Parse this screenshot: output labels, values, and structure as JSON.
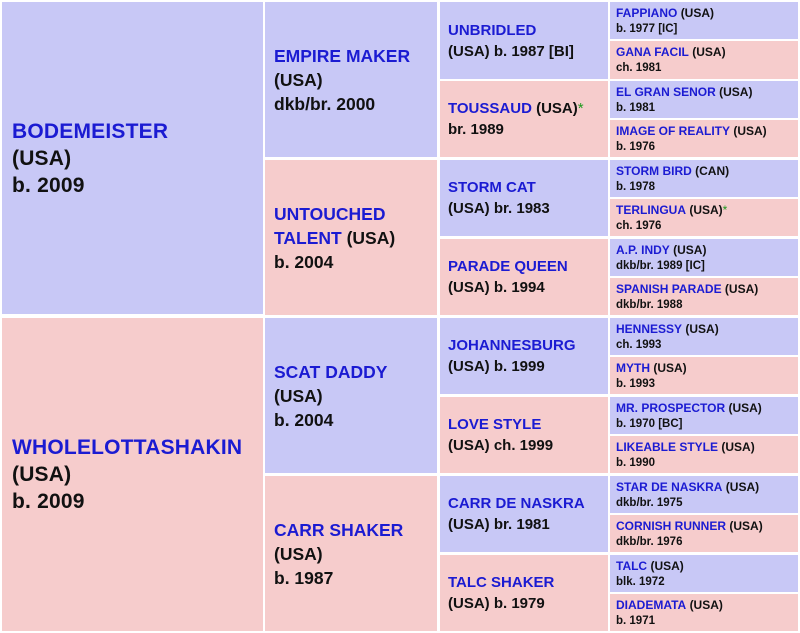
{
  "generation1": [
    {
      "name": "BODEMEISTER",
      "country": "(USA)",
      "detail": "b. 2009",
      "sex": "m"
    },
    {
      "name": "WHOLELOTTASHAKIN",
      "country": "(USA)",
      "detail": "b. 2009",
      "sex": "f"
    }
  ],
  "generation2": [
    {
      "name": "EMPIRE MAKER",
      "country": "(USA)",
      "detail": "dkb/br. 2000",
      "sex": "m"
    },
    {
      "name": "UNTOUCHED",
      "name2": "TALENT",
      "country": "(USA)",
      "detail": "b. 2004",
      "sex": "f"
    },
    {
      "name": "SCAT DADDY",
      "country": "(USA)",
      "detail": "b. 2004",
      "sex": "m"
    },
    {
      "name": "CARR SHAKER",
      "country": "(USA)",
      "detail": "b. 1987",
      "sex": "f"
    }
  ],
  "generation3": [
    {
      "name": "UNBRIDLED",
      "country": "(USA)",
      "detail": "b. 1987 [BI]",
      "sex": "m"
    },
    {
      "name": "TOUSSAUD",
      "country": "(USA)",
      "star": "*",
      "detail": "br. 1989",
      "sex": "f"
    },
    {
      "name": "STORM CAT",
      "country": "(USA)",
      "detail": "br. 1983",
      "sex": "m"
    },
    {
      "name": "PARADE QUEEN",
      "country": "(USA)",
      "detail": "b. 1994",
      "sex": "f"
    },
    {
      "name": "JOHANNESBURG",
      "country": "(USA)",
      "detail": "b. 1999",
      "sex": "m"
    },
    {
      "name": "LOVE STYLE",
      "country": "(USA)",
      "detail": "ch. 1999",
      "sex": "f"
    },
    {
      "name": "CARR DE NASKRA",
      "country": "(USA)",
      "detail": "br. 1981",
      "sex": "m"
    },
    {
      "name": "TALC SHAKER",
      "country": "(USA)",
      "detail": "b. 1979",
      "sex": "f"
    }
  ],
  "generation4": [
    {
      "name": "FAPPIANO",
      "country": "(USA)",
      "detail": "b. 1977 [IC]",
      "sex": "m"
    },
    {
      "name": "GANA FACIL",
      "country": "(USA)",
      "detail": "ch. 1981",
      "sex": "f"
    },
    {
      "name": "EL GRAN SENOR",
      "country": "(USA)",
      "detail": "b. 1981",
      "sex": "m"
    },
    {
      "name": "IMAGE OF REALITY",
      "country": "(USA)",
      "detail": "b. 1976",
      "sex": "f"
    },
    {
      "name": "STORM BIRD",
      "country": "(CAN)",
      "detail": "b. 1978",
      "sex": "m"
    },
    {
      "name": "TERLINGUA",
      "country": "(USA)",
      "star": "*",
      "detail": "ch. 1976",
      "sex": "f"
    },
    {
      "name": "A.P. INDY",
      "country": "(USA)",
      "detail": "dkb/br. 1989 [IC]",
      "sex": "m"
    },
    {
      "name": "SPANISH PARADE",
      "country": "(USA)",
      "detail": "dkb/br. 1988",
      "sex": "f"
    },
    {
      "name": "HENNESSY",
      "country": "(USA)",
      "detail": "ch. 1993",
      "sex": "m"
    },
    {
      "name": "MYTH",
      "country": "(USA)",
      "detail": "b. 1993",
      "sex": "f"
    },
    {
      "name": "MR. PROSPECTOR",
      "country": "(USA)",
      "detail": "b. 1970 [BC]",
      "sex": "m"
    },
    {
      "name": "LIKEABLE STYLE",
      "country": "(USA)",
      "detail": "b. 1990",
      "sex": "f"
    },
    {
      "name": "STAR DE NASKRA",
      "country": "(USA)",
      "detail": "dkb/br. 1975",
      "sex": "m"
    },
    {
      "name": "CORNISH RUNNER",
      "country": "(USA)",
      "detail": "dkb/br. 1976",
      "sex": "f"
    },
    {
      "name": "TALC",
      "country": "(USA)",
      "detail": "blk. 1972",
      "sex": "m"
    },
    {
      "name": "DIADEMATA",
      "country": "(USA)",
      "detail": "b. 1971",
      "sex": "f"
    }
  ],
  "colors": {
    "sire_bg": "#c8c8f6",
    "dam_bg": "#f6cccc",
    "name_text": "#1b1bd2",
    "star": "#1e9a1e"
  }
}
